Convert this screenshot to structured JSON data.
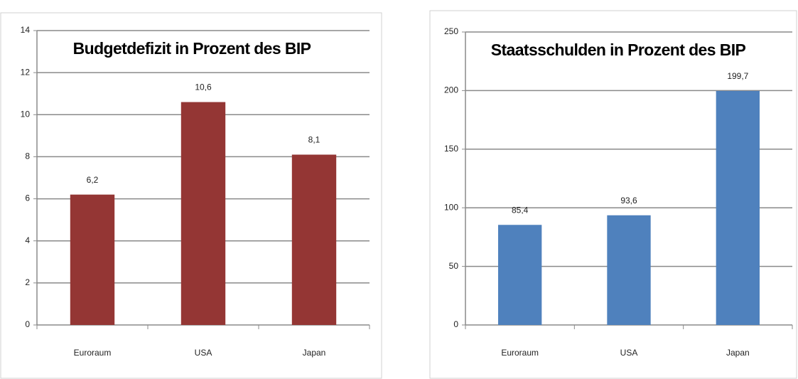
{
  "chart_data": [
    {
      "type": "bar",
      "title": "Budgetdefizit in Prozent des BIP",
      "categories": [
        "Euroraum",
        "USA",
        "Japan"
      ],
      "values": [
        6.2,
        10.6,
        8.1
      ],
      "value_labels": [
        "6,2",
        "10,6",
        "8,1"
      ],
      "color": "#943634",
      "ylim": [
        0,
        14
      ],
      "yticks": [
        0,
        2,
        4,
        6,
        8,
        10,
        12,
        14
      ],
      "grid": true
    },
    {
      "type": "bar",
      "title": "Staatsschulden in Prozent des BIP",
      "categories": [
        "Euroraum",
        "USA",
        "Japan"
      ],
      "values": [
        85.4,
        93.6,
        199.7
      ],
      "value_labels": [
        "85,4",
        "93,6",
        "199,7"
      ],
      "color": "#4f81bd",
      "ylim": [
        0,
        250
      ],
      "yticks": [
        0,
        50,
        100,
        150,
        200,
        250
      ],
      "grid": true
    }
  ]
}
